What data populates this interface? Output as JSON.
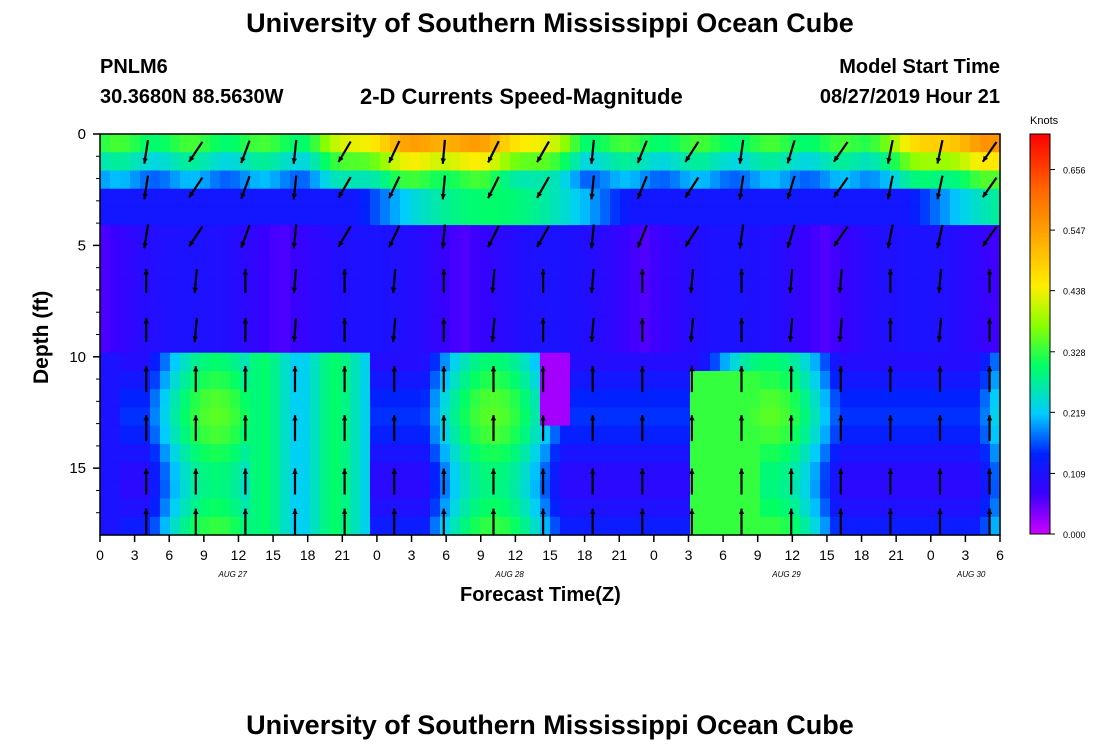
{
  "title_top": "University of Southern Mississippi Ocean Cube",
  "title_bottom": "University of Southern Mississippi Ocean Cube",
  "header": {
    "station": "PNLM6",
    "coords": "30.3680N 88.5630W",
    "subtitle": "2-D Currents Speed-Magnitude",
    "model_start_label": "Model Start Time",
    "model_start_value": "08/27/2019 Hour 21"
  },
  "chart_data": {
    "type": "heatmap",
    "title": "2-D Currents Speed-Magnitude",
    "xlabel": "Forecast Time(Z)",
    "ylabel": "Depth (ft)",
    "x_range_hours": [
      0,
      78
    ],
    "y_range_ft": [
      0,
      18
    ],
    "x_ticks": [
      "0",
      "3",
      "6",
      "9",
      "12",
      "15",
      "18",
      "21",
      "0",
      "3",
      "6",
      "9",
      "12",
      "15",
      "18",
      "21",
      "0",
      "3",
      "6",
      "9",
      "12",
      "15",
      "18",
      "21",
      "0",
      "3",
      "6"
    ],
    "y_ticks": [
      "0",
      "5",
      "10",
      "15"
    ],
    "date_labels": [
      {
        "label": "AUG 27",
        "hour": 11.5
      },
      {
        "label": "AUG 28",
        "hour": 35.5
      },
      {
        "label": "AUG 29",
        "hour": 59.5
      },
      {
        "label": "AUG 30",
        "hour": 75.5
      }
    ],
    "colorbar": {
      "unit": "Knots",
      "min": 0.0,
      "max": 0.72,
      "tick_labels": [
        "0.656",
        "0.547",
        "0.438",
        "0.328",
        "0.219",
        "0.109",
        "0.000"
      ],
      "tick_values": [
        0.656,
        0.547,
        0.438,
        0.328,
        0.219,
        0.109,
        0.0
      ]
    },
    "speed_profile_description": "strong surface layer near 0-2 ft (0.4-0.65 kn), weak mid-depth (5-9 ft), moderate 0.2-0.35 kn below 10 ft"
  }
}
